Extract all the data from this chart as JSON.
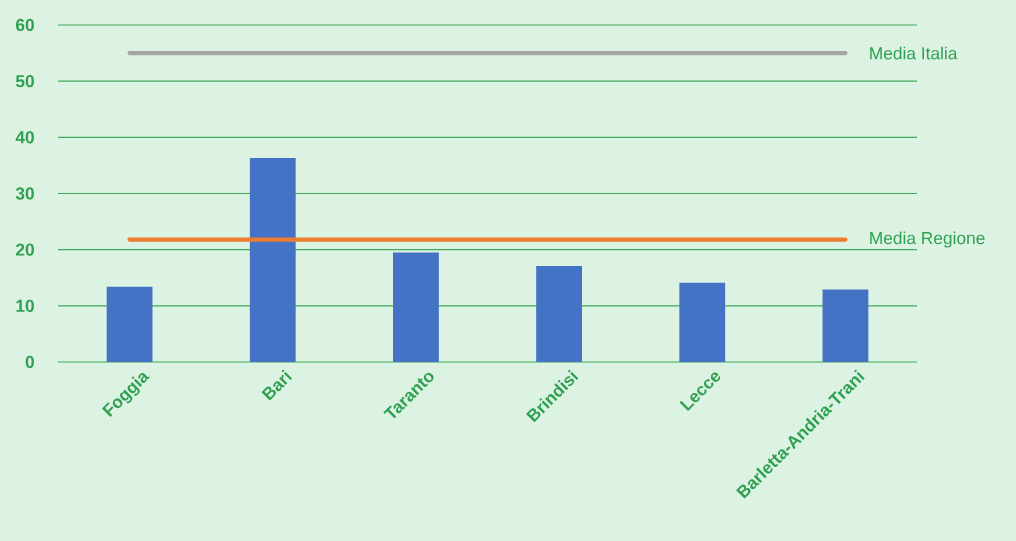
{
  "chart_data": {
    "type": "bar",
    "categories": [
      "Foggia",
      "Bari",
      "Taranto",
      "Brindisi",
      "Lecce",
      "Barletta-Andria-Trani"
    ],
    "values": [
      13.4,
      36.3,
      19.5,
      17.1,
      14.1,
      12.9
    ],
    "color": "#4472c4",
    "ylim": [
      0,
      60
    ],
    "yticks": [
      0,
      10,
      20,
      30,
      40,
      50,
      60
    ],
    "grid": "y",
    "ref_lines": [
      {
        "axis": "y",
        "value": 55.0,
        "label": "Media Italia",
        "color": "#a5a5a5"
      },
      {
        "axis": "y",
        "value": 21.8,
        "label": "Media Regione",
        "color": "#ed7d31"
      }
    ]
  }
}
